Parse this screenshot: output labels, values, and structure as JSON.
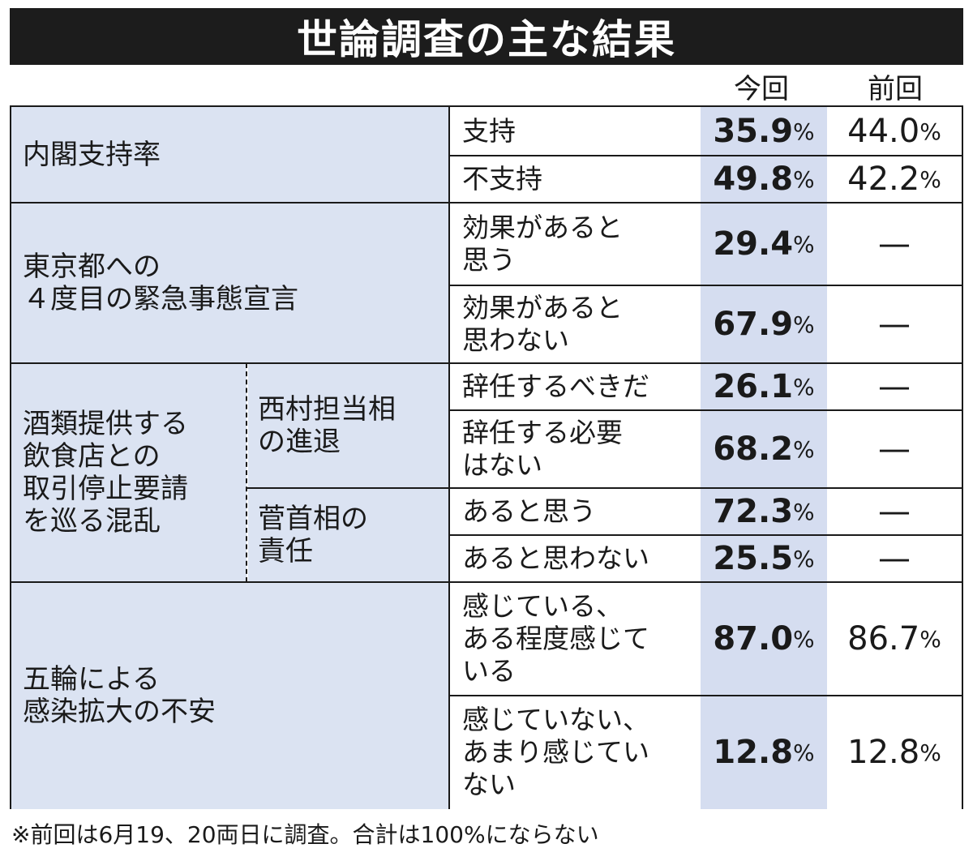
{
  "title": "世論調査の主な結果",
  "columns": {
    "current": "今回",
    "previous": "前回"
  },
  "pct_sign": "%",
  "categories": {
    "cabinet": "内閣支持率",
    "emergency": "東京都への\n４度目の緊急事態宣言",
    "alcohol": "酒類提供する\n飲食店との\n取引停止要請\nを巡る混乱",
    "olympics": "五輪による\n感染拡大の不安"
  },
  "subcategories": {
    "nishimura": "西村担当相\nの進退",
    "suga": "菅首相の\n責任"
  },
  "rows": [
    {
      "answer": "支持",
      "current": "35.9",
      "previous": "44.0"
    },
    {
      "answer": "不支持",
      "current": "49.8",
      "previous": "42.2"
    },
    {
      "answer": "効果があると\n思う",
      "current": "29.4",
      "previous": "—"
    },
    {
      "answer": "効果があると\n思わない",
      "current": "67.9",
      "previous": "—"
    },
    {
      "answer": "辞任するべきだ",
      "current": "26.1",
      "previous": "—"
    },
    {
      "answer": "辞任する必要\nはない",
      "current": "68.2",
      "previous": "—"
    },
    {
      "answer": "あると思う",
      "current": "72.3",
      "previous": "—"
    },
    {
      "answer": "あると思わない",
      "current": "25.5",
      "previous": "—"
    },
    {
      "answer": "感じている、\nある程度感じて\nいる",
      "current": "87.0",
      "previous": "86.7"
    },
    {
      "answer": "感じていない、\nあまり感じてい\nない",
      "current": "12.8",
      "previous": "12.8"
    }
  ],
  "footnote": "※前回は6月19、20両日に調査。合計は100%にならない"
}
